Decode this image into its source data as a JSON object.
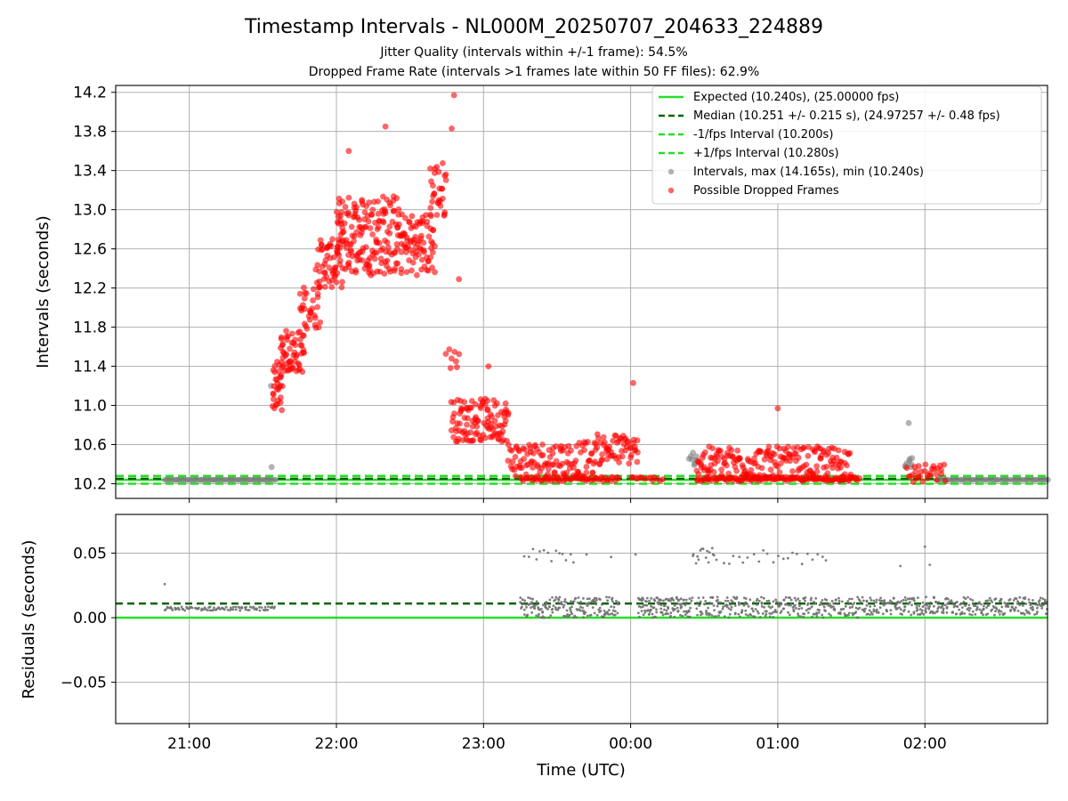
{
  "figure": {
    "title": "Timestamp Intervals - NL000M_20250707_204633_224889",
    "subtitle_1": "Jitter Quality (intervals within +/-1 frame): 54.5%",
    "subtitle_2": "Dropped Frame Rate (intervals >1 frames late within 50 FF files): 62.9%"
  },
  "colors": {
    "expected": "#22e022",
    "median": "#006400",
    "interval_band": "#22e022",
    "grey_points": "#808080",
    "red_points": "#ff0000",
    "grid": "#b0b0b0"
  },
  "chart_data": [
    {
      "type": "scatter",
      "panel": "top",
      "ylabel": "Intervals (seconds)",
      "ylim": [
        10.05,
        14.27
      ],
      "yticks": [
        10.2,
        10.6,
        11.0,
        11.4,
        11.8,
        12.2,
        12.6,
        13.0,
        13.4,
        13.8,
        14.2
      ],
      "ytick_labels": [
        "10.2",
        "10.6",
        "11.0",
        "11.4",
        "11.8",
        "12.2",
        "12.6",
        "13.0",
        "13.4",
        "13.8",
        "14.2"
      ],
      "xlim": [
        "20:30",
        "02:50"
      ],
      "grid": true,
      "legend_position": "top-right",
      "legend": [
        "Expected (10.240s), (25.00000 fps)",
        "Median (10.251 +/- 0.215 s), (24.97257 +/- 0.48 fps)",
        "-1/fps Interval (10.200s)",
        "+1/fps Interval (10.280s)",
        "Intervals, max (14.165s), min (10.240s)",
        "Possible Dropped Frames"
      ],
      "lines": [
        {
          "name": "Expected",
          "y": 10.24,
          "style": "solid"
        },
        {
          "name": "Median",
          "y": 10.251,
          "style": "dashed"
        },
        {
          "name": "-1/fps Interval",
          "y": 10.2,
          "style": "dashed"
        },
        {
          "name": "+1/fps Interval",
          "y": 10.28,
          "style": "dashed"
        }
      ],
      "series": [
        {
          "name": "Intervals",
          "clusters": [
            {
              "x_range": [
                "20:50",
                "21:35"
              ],
              "y_mean": 10.24,
              "y_spread": 0.0,
              "count": 60
            },
            {
              "x_range": [
                "21:33",
                "21:34"
              ],
              "y_mean": 10.37,
              "y_spread": 0.0,
              "count": 1
            },
            {
              "x_range": [
                "21:33",
                "21:34"
              ],
              "y_mean": 11.2,
              "y_spread": 0.0,
              "count": 1
            },
            {
              "x_range": [
                "00:24",
                "00:27"
              ],
              "y_mean": 10.45,
              "y_spread": 0.08,
              "count": 8
            },
            {
              "x_range": [
                "01:52",
                "01:55"
              ],
              "y_mean": 10.4,
              "y_spread": 0.08,
              "count": 8
            },
            {
              "x_range": [
                "01:53",
                "01:54"
              ],
              "y_mean": 10.82,
              "y_spread": 0.0,
              "count": 1
            },
            {
              "x_range": [
                "02:05",
                "02:50"
              ],
              "y_mean": 10.24,
              "y_spread": 0.0,
              "count": 50
            }
          ]
        },
        {
          "name": "Possible Dropped Frames",
          "clusters": [
            {
              "x_range": [
                "21:34",
                "21:38"
              ],
              "y_mean": 11.2,
              "y_spread": 0.25,
              "count": 30
            },
            {
              "x_range": [
                "21:37",
                "21:47"
              ],
              "y_mean": 11.55,
              "y_spread": 0.22,
              "count": 55
            },
            {
              "x_range": [
                "21:45",
                "21:53"
              ],
              "y_mean": 12.0,
              "y_spread": 0.22,
              "count": 30
            },
            {
              "x_range": [
                "21:52",
                "22:02"
              ],
              "y_mean": 12.45,
              "y_spread": 0.25,
              "count": 55
            },
            {
              "x_range": [
                "22:00",
                "22:12"
              ],
              "y_mean": 12.75,
              "y_spread": 0.4,
              "count": 80
            },
            {
              "x_range": [
                "22:12",
                "22:25"
              ],
              "y_mean": 12.75,
              "y_spread": 0.42,
              "count": 85
            },
            {
              "x_range": [
                "22:25",
                "22:40"
              ],
              "y_mean": 12.65,
              "y_spread": 0.32,
              "count": 85
            },
            {
              "x_range": [
                "22:38",
                "22:45"
              ],
              "y_mean": 13.2,
              "y_spread": 0.3,
              "count": 30
            },
            {
              "x_range": [
                "22:45",
                "22:50"
              ],
              "y_mean": 11.5,
              "y_spread": 0.12,
              "count": 8
            },
            {
              "x_range": [
                "22:47",
                "23:10"
              ],
              "y_mean": 10.85,
              "y_spread": 0.22,
              "count": 110
            },
            {
              "x_range": [
                "23:10",
                "23:45"
              ],
              "y_mean": 10.45,
              "y_spread": 0.18,
              "count": 110
            },
            {
              "x_range": [
                "23:15",
                "23:55"
              ],
              "y_mean": 10.25,
              "y_spread": 0.02,
              "count": 60
            },
            {
              "x_range": [
                "23:45",
                "00:03"
              ],
              "y_mean": 10.55,
              "y_spread": 0.16,
              "count": 60
            },
            {
              "x_range": [
                "00:00",
                "00:13"
              ],
              "y_mean": 10.25,
              "y_spread": 0.02,
              "count": 14
            },
            {
              "x_range": [
                "00:27",
                "01:30"
              ],
              "y_mean": 10.42,
              "y_spread": 0.16,
              "count": 190
            },
            {
              "x_range": [
                "00:27",
                "01:33"
              ],
              "y_mean": 10.25,
              "y_spread": 0.02,
              "count": 130
            },
            {
              "x_range": [
                "01:53",
                "02:08"
              ],
              "y_mean": 10.3,
              "y_spread": 0.1,
              "count": 30
            }
          ],
          "singles": [
            {
              "x": "22:48",
              "y": 14.17
            },
            {
              "x": "22:47",
              "y": 13.83
            },
            {
              "x": "22:20",
              "y": 13.85
            },
            {
              "x": "22:05",
              "y": 13.6
            },
            {
              "x": "23:02",
              "y": 11.4
            },
            {
              "x": "00:01",
              "y": 11.23
            },
            {
              "x": "01:00",
              "y": 10.97
            },
            {
              "x": "22:50",
              "y": 12.29
            }
          ]
        }
      ]
    },
    {
      "type": "scatter",
      "panel": "bottom",
      "xlabel": "Time (UTC)",
      "ylabel": "Residuals (seconds)",
      "ylim": [
        -0.082,
        0.08
      ],
      "yticks": [
        -0.05,
        0.0,
        0.05
      ],
      "ytick_labels": [
        "−0.05",
        "0.00",
        "0.05"
      ],
      "xticks": [
        "21:00",
        "22:00",
        "23:00",
        "00:00",
        "01:00",
        "02:00"
      ],
      "xlim": [
        "20:30",
        "02:50"
      ],
      "grid": true,
      "lines": [
        {
          "name": "Expected",
          "y": 0.0,
          "style": "solid"
        },
        {
          "name": "Median",
          "y": 0.011,
          "style": "dashed"
        }
      ],
      "series": [
        {
          "name": "Residuals",
          "clusters": [
            {
              "x_range": [
                "20:50",
                "21:35"
              ],
              "y_mean": 0.007,
              "y_spread": 0.0015,
              "count": 90
            },
            {
              "x_range": [
                "23:15",
                "23:55"
              ],
              "y_mean": 0.008,
              "y_spread": 0.008,
              "count": 180
            },
            {
              "x_range": [
                "00:03",
                "00:25"
              ],
              "y_mean": 0.008,
              "y_spread": 0.008,
              "count": 120
            },
            {
              "x_range": [
                "00:27",
                "01:33"
              ],
              "y_mean": 0.008,
              "y_spread": 0.008,
              "count": 260
            },
            {
              "x_range": [
                "01:33",
                "02:50"
              ],
              "y_mean": 0.009,
              "y_spread": 0.007,
              "count": 320
            },
            {
              "x_range": [
                "23:17",
                "23:37"
              ],
              "y_mean": 0.048,
              "y_spread": 0.006,
              "count": 14
            },
            {
              "x_range": [
                "00:25",
                "00:35"
              ],
              "y_mean": 0.048,
              "y_spread": 0.006,
              "count": 16
            },
            {
              "x_range": [
                "00:38",
                "01:20"
              ],
              "y_mean": 0.047,
              "y_spread": 0.006,
              "count": 22
            }
          ],
          "singles": [
            {
              "x": "20:50",
              "y": 0.026
            },
            {
              "x": "23:42",
              "y": 0.049
            },
            {
              "x": "23:52",
              "y": 0.047
            },
            {
              "x": "00:02",
              "y": 0.049
            },
            {
              "x": "02:00",
              "y": 0.055
            },
            {
              "x": "02:02",
              "y": 0.041
            },
            {
              "x": "01:50",
              "y": 0.04
            }
          ]
        }
      ]
    }
  ]
}
